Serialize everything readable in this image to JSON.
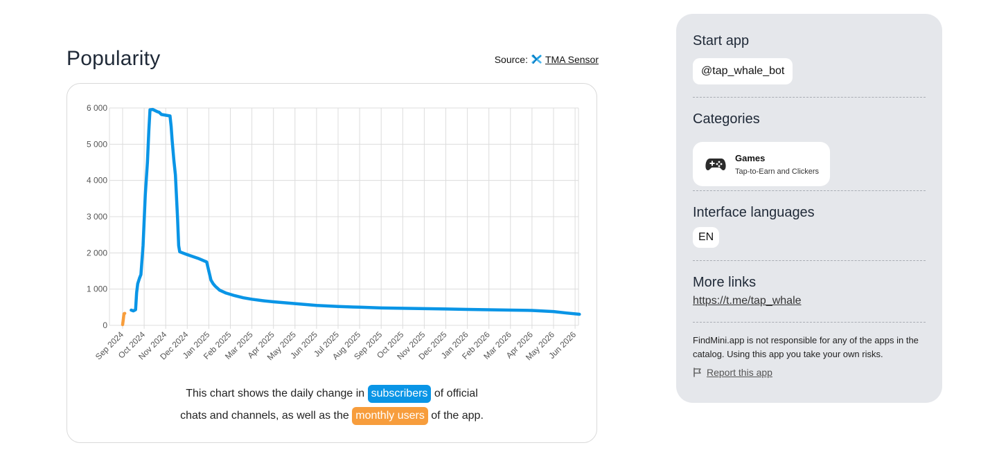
{
  "popularity": {
    "title": "Popularity",
    "source_prefix": "Source:",
    "source_link": "TMA Sensor",
    "caption": {
      "part1": "This chart shows the daily change in",
      "chip_subscribers": "subscribers",
      "part2": "of official",
      "part3": "chats and channels, as well as the",
      "chip_monthly": "monthly users",
      "part4": "of the app."
    }
  },
  "chart_data": {
    "type": "line",
    "y_ticks": [
      "6 000",
      "5 000",
      "4 000",
      "3 000",
      "2 000",
      "1 000",
      "0"
    ],
    "y_tick_values": [
      6000,
      5000,
      4000,
      3000,
      2000,
      1000,
      0
    ],
    "ylim": [
      0,
      6000
    ],
    "x_tick_labels": [
      "Sep 2024",
      "Oct 2024",
      "Nov 2024",
      "Dec 2024",
      "Jan 2025",
      "Feb 2025",
      "Mar 2025",
      "Apr 2025",
      "May 2025",
      "Jun 2025",
      "Jul 2025",
      "Aug 2025",
      "Sep 2025",
      "Oct 2025",
      "Nov 2025",
      "Dec 2025",
      "Jan 2026",
      "Feb 2026",
      "Mar 2026",
      "Apr 2026",
      "May 2026",
      "Jun 2026"
    ],
    "grid": true,
    "series": [
      {
        "name": "subscribers",
        "color": "#0a95e6",
        "points": [
          [
            0.4,
            420
          ],
          [
            0.5,
            400
          ],
          [
            0.6,
            430
          ],
          [
            0.65,
            900
          ],
          [
            0.7,
            1150
          ],
          [
            0.78,
            1300
          ],
          [
            0.85,
            1400
          ],
          [
            0.95,
            2200
          ],
          [
            1.05,
            3600
          ],
          [
            1.15,
            4500
          ],
          [
            1.22,
            5400
          ],
          [
            1.27,
            5950
          ],
          [
            1.4,
            5960
          ],
          [
            1.6,
            5900
          ],
          [
            1.7,
            5880
          ],
          [
            1.8,
            5820
          ],
          [
            2.2,
            5780
          ],
          [
            2.25,
            5500
          ],
          [
            2.3,
            5100
          ],
          [
            2.38,
            4550
          ],
          [
            2.45,
            4150
          ],
          [
            2.55,
            2950
          ],
          [
            2.6,
            2200
          ],
          [
            2.65,
            2030
          ],
          [
            3.0,
            1950
          ],
          [
            3.5,
            1850
          ],
          [
            3.9,
            1750
          ],
          [
            4.0,
            1500
          ],
          [
            4.1,
            1250
          ],
          [
            4.2,
            1150
          ],
          [
            4.3,
            1080
          ],
          [
            4.5,
            970
          ],
          [
            4.8,
            890
          ],
          [
            5.2,
            820
          ],
          [
            5.6,
            760
          ],
          [
            6.0,
            720
          ],
          [
            6.5,
            680
          ],
          [
            7.0,
            650
          ],
          [
            8.0,
            600
          ],
          [
            9.0,
            550
          ],
          [
            10.0,
            520
          ],
          [
            11.0,
            500
          ],
          [
            12.0,
            480
          ],
          [
            13.0,
            470
          ],
          [
            14.0,
            460
          ],
          [
            15.0,
            450
          ],
          [
            16.0,
            440
          ],
          [
            17.0,
            430
          ],
          [
            18.0,
            420
          ],
          [
            19.0,
            410
          ],
          [
            20.0,
            380
          ],
          [
            20.6,
            340
          ],
          [
            21.2,
            305
          ]
        ]
      },
      {
        "name": "monthly users",
        "color": "#f79d3c",
        "points": [
          [
            0.0,
            20
          ],
          [
            0.03,
            150
          ],
          [
            0.06,
            320
          ],
          [
            0.1,
            330
          ]
        ]
      }
    ]
  },
  "sidebar": {
    "start_app": {
      "heading": "Start app",
      "bot": "@tap_whale_bot"
    },
    "categories": {
      "heading": "Categories",
      "item_name": "Games",
      "item_sub": "Tap-to-Earn and Clickers",
      "item_icon": "gamepad-icon"
    },
    "languages": {
      "heading": "Interface languages",
      "items": [
        "EN"
      ]
    },
    "more_links": {
      "heading": "More links",
      "link": "https://t.me/tap_whale"
    },
    "disclaimer": "FindMini.app is not responsible for any of the apps in the catalog. Using this app you take your own risks.",
    "report": "Report this app"
  }
}
